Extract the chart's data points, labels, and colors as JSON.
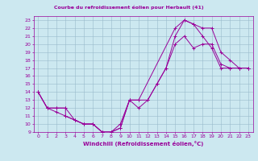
{
  "title": "Courbe du refroidissement éolien pour Herbault (41)",
  "xlabel": "Windchill (Refroidissement éolien,°C)",
  "background_color": "#cce8f0",
  "grid_color": "#99bbcc",
  "line_color": "#990099",
  "xlim": [
    -0.5,
    23.5
  ],
  "ylim": [
    9,
    23.5
  ],
  "xticks": [
    0,
    1,
    2,
    3,
    4,
    5,
    6,
    7,
    8,
    9,
    10,
    11,
    12,
    13,
    14,
    15,
    16,
    17,
    18,
    19,
    20,
    21,
    22,
    23
  ],
  "yticks": [
    9,
    10,
    11,
    12,
    13,
    14,
    15,
    16,
    17,
    18,
    19,
    20,
    21,
    22,
    23
  ],
  "series": [
    {
      "x": [
        0,
        1,
        2,
        3,
        3,
        4,
        5,
        6,
        7,
        8,
        9,
        10,
        11,
        15,
        16,
        17,
        18,
        19,
        20,
        21,
        22,
        23
      ],
      "y": [
        14,
        12,
        12,
        12,
        11,
        10.5,
        10,
        10,
        9,
        9,
        9.5,
        13,
        13,
        22,
        23,
        22.5,
        21,
        19.5,
        17,
        17,
        17,
        17
      ]
    },
    {
      "x": [
        0,
        1,
        2,
        3,
        4,
        5,
        6,
        7,
        8,
        9,
        10,
        11,
        12,
        13,
        14,
        15,
        16,
        17,
        18,
        19,
        20,
        21,
        22,
        23
      ],
      "y": [
        14,
        12,
        12,
        12,
        10.5,
        10,
        10,
        9,
        9,
        9.5,
        13,
        13,
        13,
        15,
        17,
        21,
        23,
        22.5,
        22,
        22,
        19,
        18,
        17,
        17
      ]
    },
    {
      "x": [
        0,
        1,
        2,
        3,
        4,
        5,
        6,
        7,
        8,
        9,
        10,
        11,
        12,
        13,
        14,
        15,
        16,
        17,
        18,
        19,
        20,
        21,
        22,
        23
      ],
      "y": [
        14,
        12,
        11.5,
        11,
        10.5,
        10,
        10,
        9,
        9,
        10,
        13,
        12,
        13,
        15,
        17,
        20,
        21,
        19.5,
        20,
        20,
        17.5,
        17,
        17,
        17
      ]
    }
  ]
}
